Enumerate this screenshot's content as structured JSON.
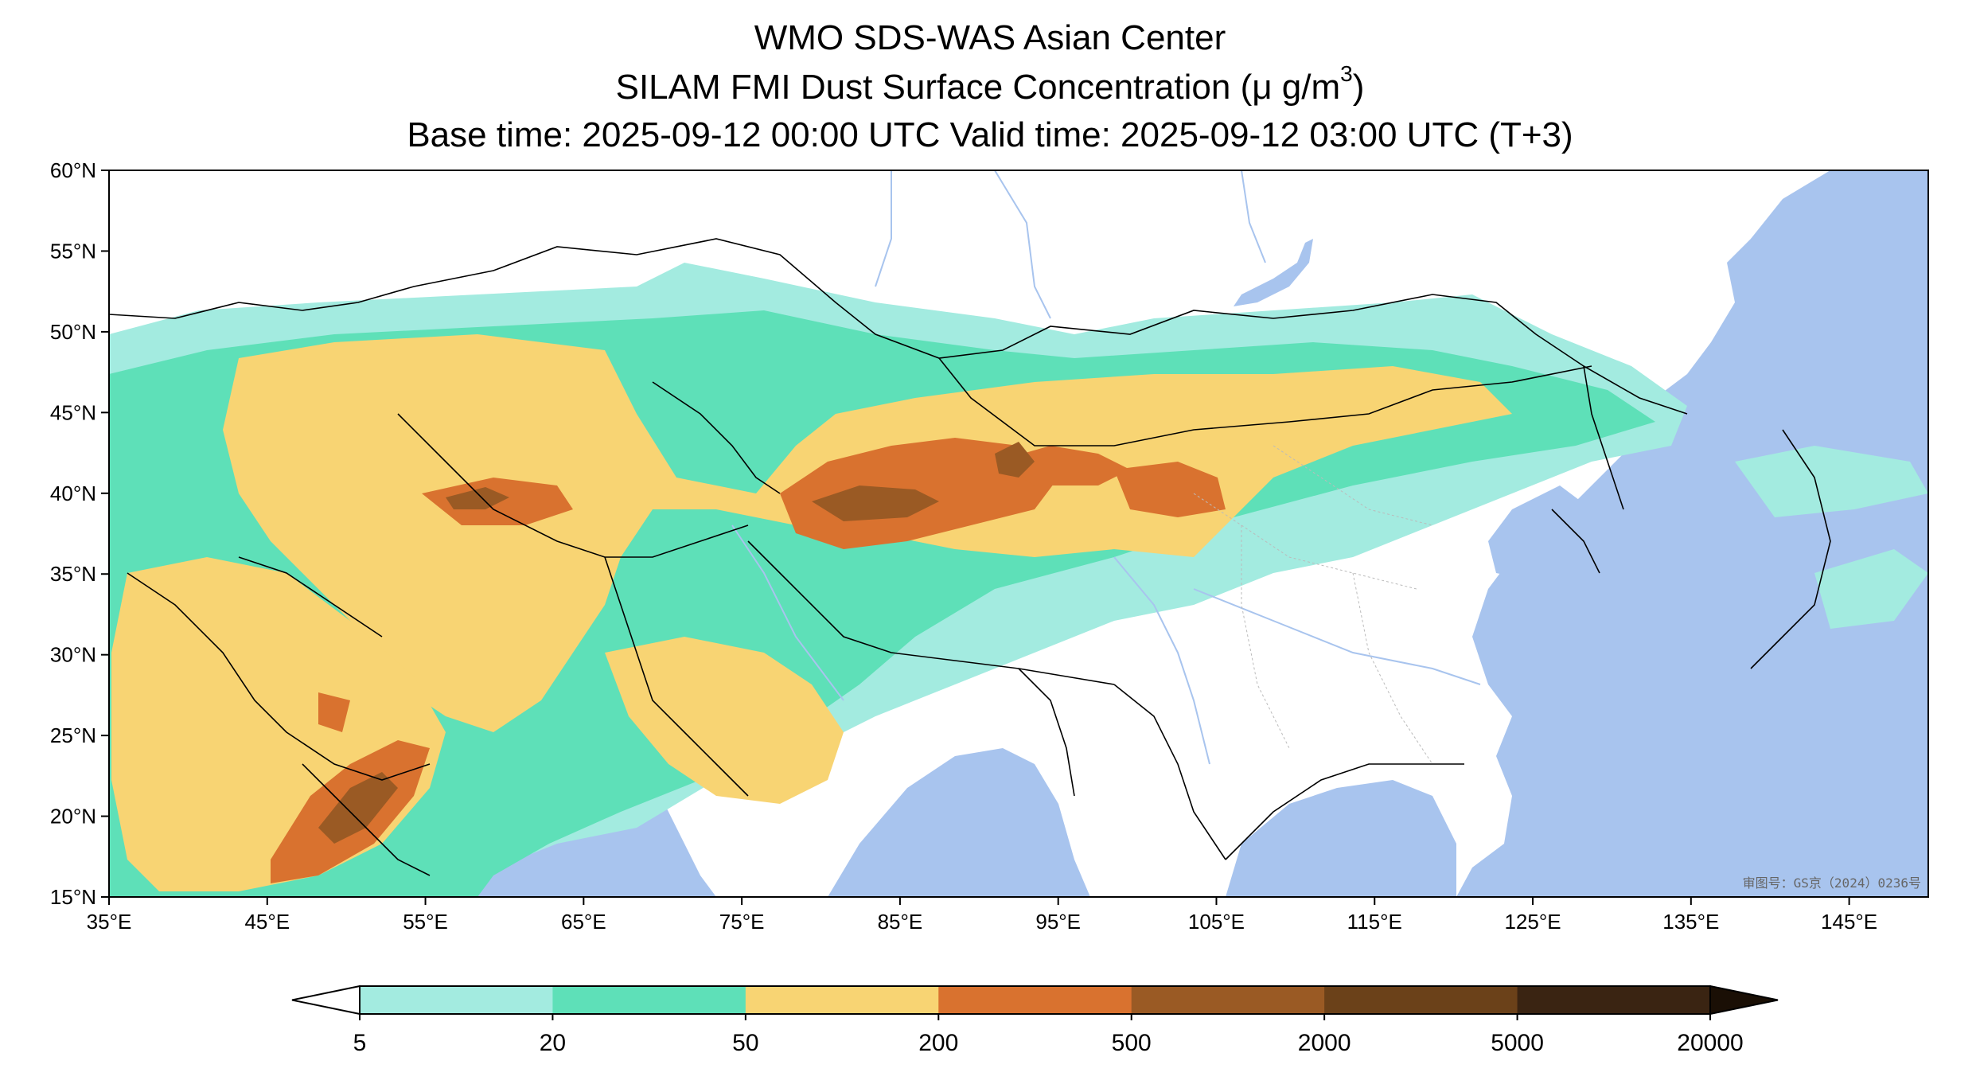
{
  "title": {
    "line1": "WMO SDS-WAS Asian Center",
    "line2_prefix": "SILAM FMI Dust Surface Concentration (",
    "line2_unit": "μ g/m",
    "line2_sup": "3",
    "line2_suffix": ")",
    "line3": "Base time: 2025-09-12 00:00 UTC Valid time: 2025-09-12 03:00 UTC (T+3)"
  },
  "map": {
    "lon_range": [
      35,
      150
    ],
    "lat_range": [
      15,
      60
    ],
    "lon_ticks": [
      "35°E",
      "45°E",
      "55°E",
      "65°E",
      "75°E",
      "85°E",
      "95°E",
      "105°E",
      "115°E",
      "125°E",
      "135°E",
      "145°E"
    ],
    "lat_ticks": [
      "15°N",
      "20°N",
      "25°N",
      "30°N",
      "35°N",
      "40°N",
      "45°N",
      "50°N",
      "55°N",
      "60°N"
    ],
    "credit": "审图号：GS京（2024）0236号",
    "colors": {
      "sea": "#a8c4ee",
      "land": "#ffffff",
      "border": "#000000",
      "river": "#a8c4ee"
    }
  },
  "colorbar": {
    "labels": [
      "5",
      "20",
      "50",
      "200",
      "500",
      "2000",
      "5000",
      "20000"
    ],
    "colors": [
      "#a3ebe0",
      "#5ee0b8",
      "#f8d473",
      "#d9722f",
      "#9a5a24",
      "#6b4119",
      "#3a2412"
    ],
    "under_color": "#ffffff",
    "over_color": "#1a0f05"
  }
}
